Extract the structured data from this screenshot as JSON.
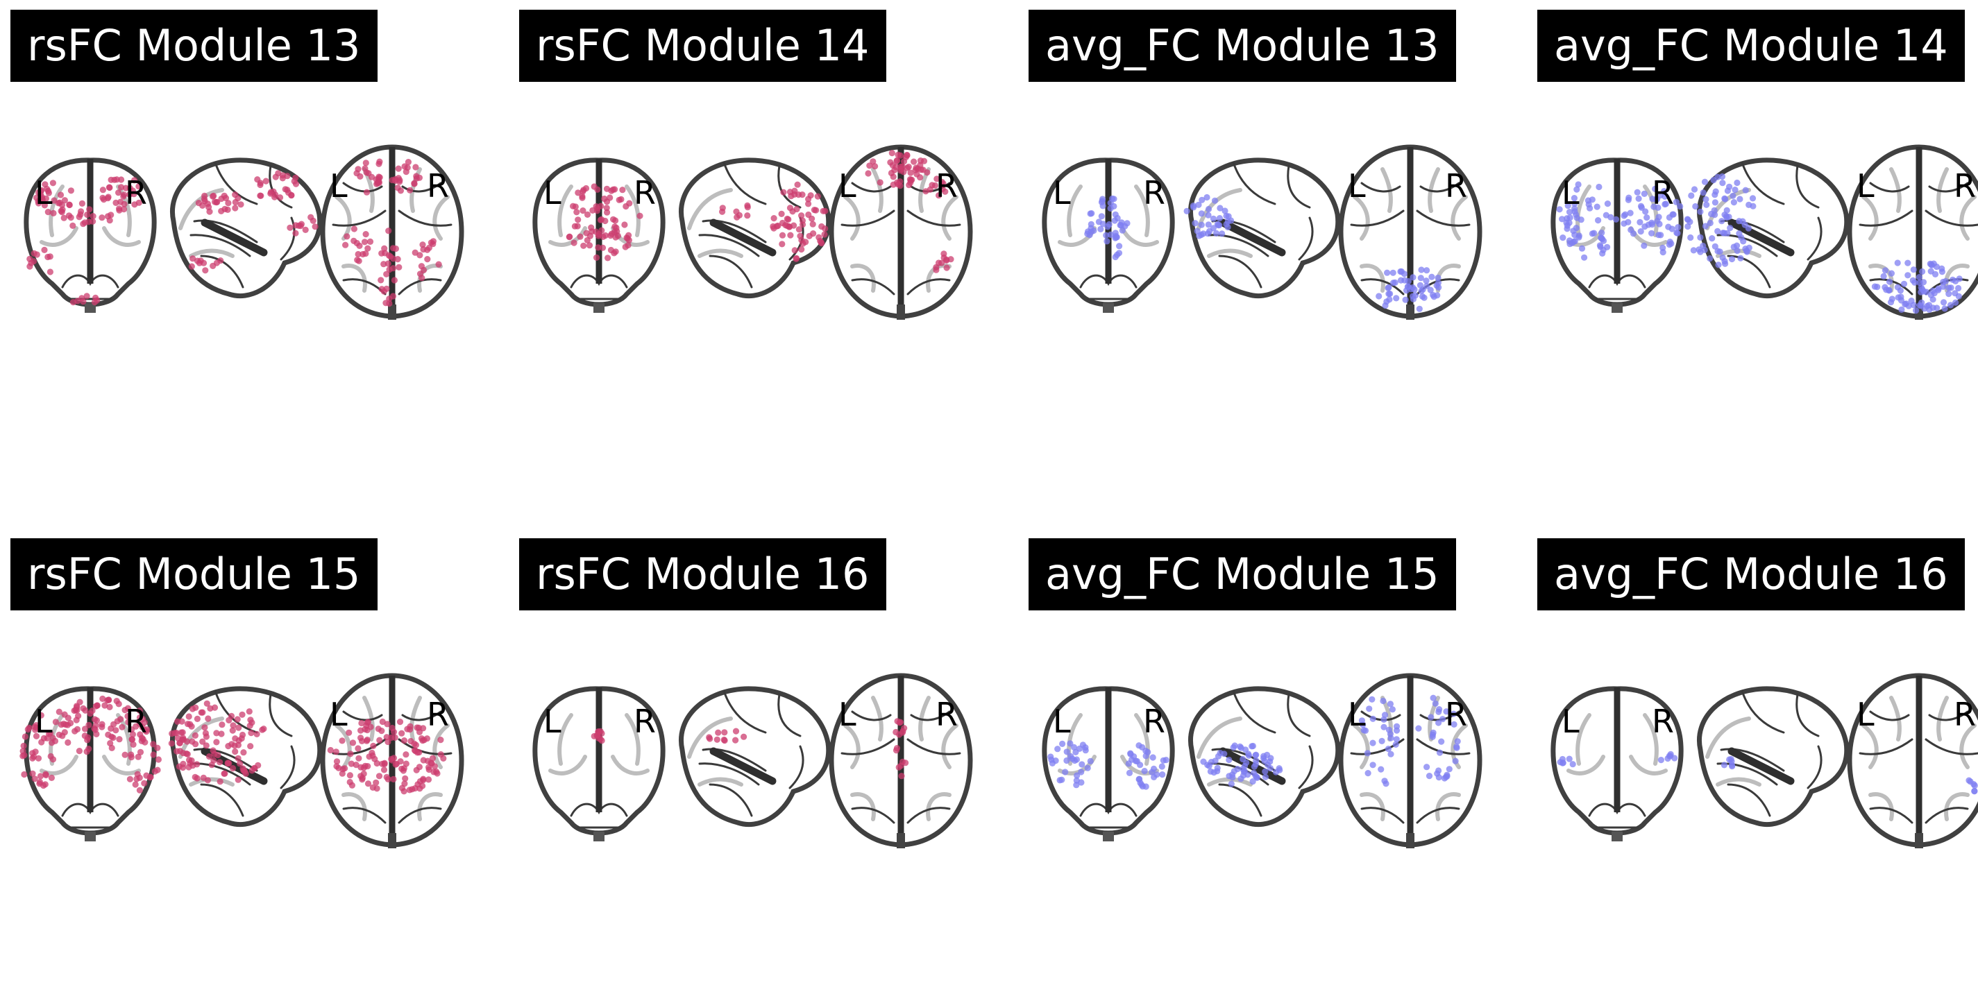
{
  "figure": {
    "colors": {
      "rsFC": "#cc3d6f",
      "avg_FC": "#7f7ff2"
    },
    "panels": [
      {
        "title": "rsFC Module 13",
        "group": "rsFC",
        "module": 13,
        "pattern": "lateral-frontal-parietal"
      },
      {
        "title": "rsFC Module 14",
        "group": "rsFC",
        "module": 14,
        "pattern": "anterior-frontal"
      },
      {
        "title": "avg_FC Module 13",
        "group": "avg_FC",
        "module": 13,
        "pattern": "posterior-medial"
      },
      {
        "title": "avg_FC Module 14",
        "group": "avg_FC",
        "module": 14,
        "pattern": "occipital"
      },
      {
        "title": "rsFC Module 15",
        "group": "rsFC",
        "module": 15,
        "pattern": "widespread-motor"
      },
      {
        "title": "rsFC Module 16",
        "group": "rsFC",
        "module": 16,
        "pattern": "sparse-midline"
      },
      {
        "title": "avg_FC Module 15",
        "group": "avg_FC",
        "module": 15,
        "pattern": "central-temporal"
      },
      {
        "title": "avg_FC Module 16",
        "group": "avg_FC",
        "module": 16,
        "pattern": "sparse-lateral"
      }
    ],
    "labels": {
      "left": "L",
      "right": "R"
    }
  }
}
